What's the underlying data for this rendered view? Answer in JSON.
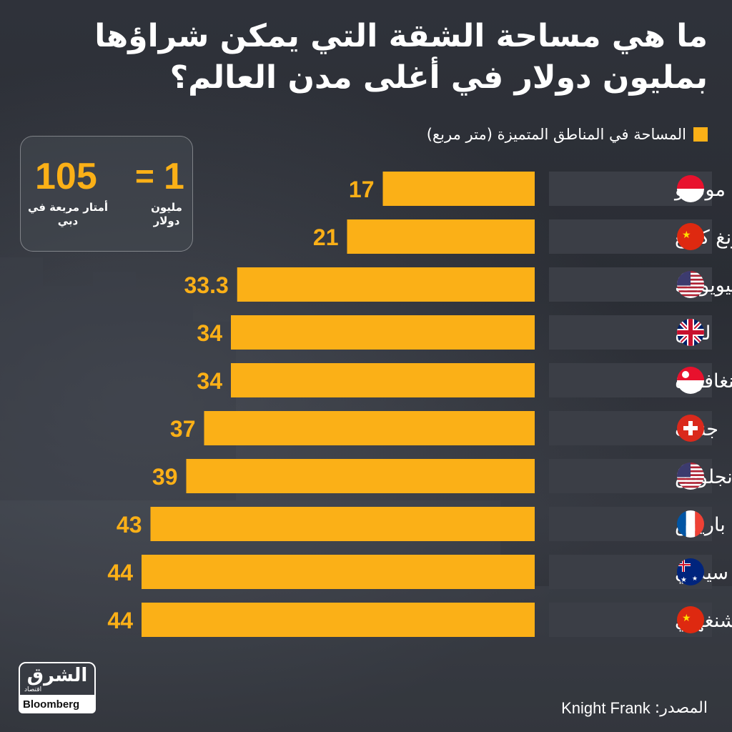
{
  "title": "ما هي مساحة الشقة التي يمكن شراؤها بمليون دولار في أغلى مدن العالم؟",
  "legend": "المساحة في المناطق المتميزة (متر مربع)",
  "callout": {
    "right_number": "1",
    "equals": "=",
    "left_number": "105",
    "right_label": "مليون دولار",
    "left_label": "أمتار مربعة في دبي"
  },
  "colors": {
    "bar": "#fbb017",
    "label_band": "#3b3e46",
    "background": "#2b2e35"
  },
  "chart_data": {
    "type": "bar",
    "orientation": "horizontal",
    "categories": [
      "موناكو",
      "هونغ كونغ",
      "نيويورك",
      "لندن",
      "سنغافورة",
      "جنيف",
      "لوس أنجلوس",
      "باريس",
      "سيدني",
      "شنغهاي"
    ],
    "values": [
      17,
      21,
      33.3,
      34,
      34,
      37,
      39,
      43,
      44,
      44
    ],
    "value_labels": [
      "17",
      "21",
      "33.3",
      "34",
      "34",
      "37",
      "39",
      "43",
      "44",
      "44"
    ],
    "flags": [
      "monaco-flag-icon",
      "china-flag-icon",
      "usa-flag-icon",
      "uk-flag-icon",
      "singapore-flag-icon",
      "switzerland-flag-icon",
      "usa-flag-icon",
      "france-flag-icon",
      "australia-flag-icon",
      "china-flag-icon"
    ],
    "xlim": [
      0,
      44
    ],
    "grid": false
  },
  "source": {
    "label": "المصدر:",
    "value": "Knight Frank"
  },
  "logo": {
    "name": "الشرق",
    "sub": "اقتصاد",
    "partner": "Bloomberg"
  }
}
